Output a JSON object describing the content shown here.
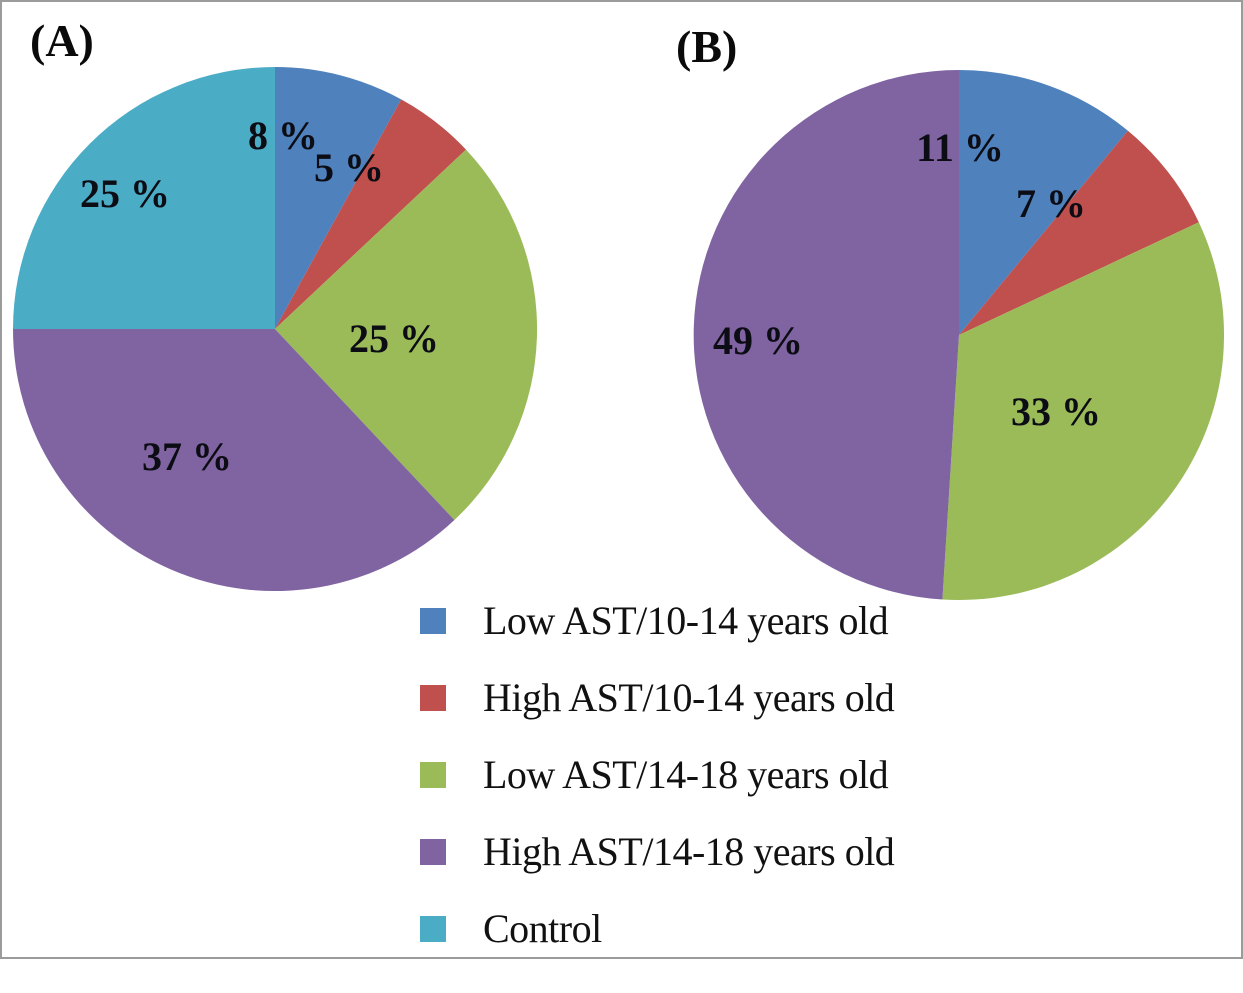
{
  "panels": {
    "a": {
      "label": "(A)"
    },
    "b": {
      "label": "(B)"
    }
  },
  "chart_data": [
    {
      "type": "pie",
      "panel": "(A)",
      "start_angle_deg": 0,
      "direction": "clockwise",
      "slices": [
        {
          "label": "Low AST/10-14 years old",
          "value": 8,
          "display": "8 %",
          "color": "#4f81bd"
        },
        {
          "label": "High AST/10-14 years old",
          "value": 5,
          "display": "5 %",
          "color": "#c0504d"
        },
        {
          "label": "Low AST/14-18 years old",
          "value": 25,
          "display": "25 %",
          "color": "#9bbb59"
        },
        {
          "label": "High AST/14-18 years old",
          "value": 37,
          "display": "37 %",
          "color": "#8064a2"
        },
        {
          "label": "Control",
          "value": 25,
          "display": "25 %",
          "color": "#4bacc6"
        }
      ]
    },
    {
      "type": "pie",
      "panel": "(B)",
      "start_angle_deg": 0,
      "direction": "clockwise",
      "slices": [
        {
          "label": "Low AST/10-14 years old",
          "value": 11,
          "display": "11 %",
          "color": "#4f81bd"
        },
        {
          "label": "High AST/10-14 years old",
          "value": 7,
          "display": "7 %",
          "color": "#c0504d"
        },
        {
          "label": "Low AST/14-18 years old",
          "value": 33,
          "display": "33 %",
          "color": "#9bbb59"
        },
        {
          "label": "High AST/14-18 years old",
          "value": 49,
          "display": "49 %",
          "color": "#8064a2"
        }
      ]
    }
  ],
  "legend": {
    "position": "bottom-center",
    "items": [
      {
        "label": "Low AST/10-14 years old",
        "color": "#4f81bd"
      },
      {
        "label": "High AST/10-14 years old",
        "color": "#c0504d"
      },
      {
        "label": "Low AST/14-18 years old",
        "color": "#9bbb59"
      },
      {
        "label": "High AST/14-18 years old",
        "color": "#8064a2"
      },
      {
        "label": "Control",
        "color": "#4bacc6"
      }
    ]
  }
}
